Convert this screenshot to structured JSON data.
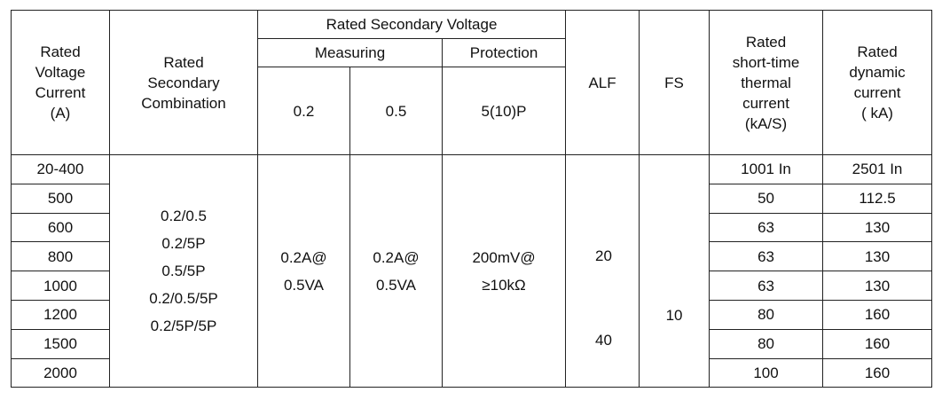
{
  "headers": {
    "rated_voltage_current": [
      "Rated",
      "Voltage",
      "Current",
      "(A)"
    ],
    "secondary_combination": [
      "Rated",
      "Secondary",
      "Combination"
    ],
    "rated_secondary_voltage": "Rated Secondary Voltage",
    "measuring": "Measuring",
    "protection": "Protection",
    "class_02": "0.2",
    "class_05": "0.5",
    "class_5_10p": "5(10)P",
    "alf": "ALF",
    "fs": "FS",
    "thermal_current": [
      "Rated",
      "short-time",
      "thermal",
      "current",
      "(kA/S)"
    ],
    "dynamic_current": [
      "Rated",
      "dynamic",
      "current",
      "( kA)"
    ]
  },
  "rows": [
    {
      "current": "20-400",
      "thermal": "1001 In",
      "dynamic": "2501 In"
    },
    {
      "current": "500",
      "thermal": "50",
      "dynamic": "112.5"
    },
    {
      "current": "600",
      "thermal": "63",
      "dynamic": "130"
    },
    {
      "current": "800",
      "thermal": "63",
      "dynamic": "130"
    },
    {
      "current": "1000",
      "thermal": "63",
      "dynamic": "130"
    },
    {
      "current": "1200",
      "thermal": "80",
      "dynamic": "160"
    },
    {
      "current": "1500",
      "thermal": "80",
      "dynamic": "160"
    },
    {
      "current": "2000",
      "thermal": "100",
      "dynamic": "160"
    }
  ],
  "merged": {
    "combinations": [
      "0.2/0.5",
      "0.2/5P",
      "0.5/5P",
      "0.2/0.5/5P",
      "0.2/5P/5P"
    ],
    "measuring_02": [
      "0.2A@",
      "0.5VA"
    ],
    "measuring_05": [
      "0.2A@",
      "0.5VA"
    ],
    "protection": [
      "200mV@",
      "≥10kΩ"
    ],
    "alf": [
      "20",
      "40"
    ],
    "fs": "10"
  }
}
